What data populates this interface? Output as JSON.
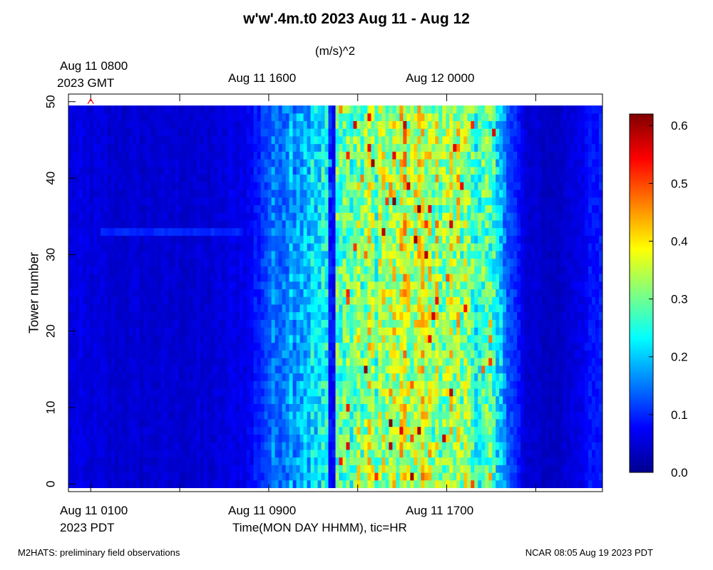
{
  "title": "w'w'.4m.t0 2023 Aug 11 - Aug 12",
  "units": "(m/s)^2",
  "top_axis": {
    "first_label_line1": "Aug 11 0800",
    "first_label_line2": "2023 GMT",
    "labels": [
      "Aug 11 1600",
      "Aug 12 0000"
    ]
  },
  "bottom_axis": {
    "first_label_line1": "Aug 11 0100",
    "first_label_line2": "2023 PDT",
    "labels": [
      "Aug 11 0900",
      "Aug 11 1700"
    ],
    "xlabel": "Time(MON DAY HHMM), tic=HR"
  },
  "footer": {
    "left": "M2HATS: preliminary field observations",
    "right": "NCAR 08:05 Aug 19 2023 PDT"
  },
  "chart_data": {
    "type": "heatmap",
    "title": "w'w'.4m.t0 2023 Aug 11 - Aug 12",
    "xlabel": "Time(MON DAY HHMM), tic=HR",
    "ylabel": "Tower number",
    "x_range_hours_since_aug11_0000_PDT": [
      0,
      24
    ],
    "x_ticks_hours": [
      1,
      5,
      9,
      13,
      17,
      21
    ],
    "x_tick_labels": [
      "Aug 11 0100",
      "Aug 11 0900",
      "Aug 11 1700"
    ],
    "ylim": [
      -1,
      51
    ],
    "y_ticks": [
      0,
      10,
      20,
      30,
      40,
      50
    ],
    "y_tick_labels": [
      "0",
      "10",
      "20",
      "30",
      "40",
      "50"
    ],
    "tower_range": [
      0,
      49
    ],
    "colorbar": {
      "label": "(m/s)^2",
      "min": 0.0,
      "max": 0.62,
      "ticks": [
        0.0,
        0.1,
        0.2,
        0.3,
        0.4,
        0.5,
        0.6
      ],
      "tick_labels": [
        "0.0",
        "0.1",
        "0.2",
        "0.3",
        "0.4",
        "0.5",
        "0.6"
      ],
      "colormap": "jet"
    },
    "time_profile": [
      {
        "hour": 0.0,
        "value": 0.06
      },
      {
        "hour": 2.0,
        "value": 0.05
      },
      {
        "hour": 6.5,
        "value": 0.05
      },
      {
        "hour": 8.2,
        "value": 0.07
      },
      {
        "hour": 8.8,
        "value": 0.12
      },
      {
        "hour": 10.0,
        "value": 0.18
      },
      {
        "hour": 11.5,
        "value": 0.22
      },
      {
        "hour": 12.0,
        "value": 0.28
      },
      {
        "hour": 12.8,
        "value": 0.29
      },
      {
        "hour": 13.5,
        "value": 0.32
      },
      {
        "hour": 15.5,
        "value": 0.35
      },
      {
        "hour": 17.5,
        "value": 0.33
      },
      {
        "hour": 19.0,
        "value": 0.25
      },
      {
        "hour": 19.8,
        "value": 0.14
      },
      {
        "hour": 20.5,
        "value": 0.05
      },
      {
        "hour": 22.0,
        "value": 0.04
      },
      {
        "hour": 23.0,
        "value": 0.07
      },
      {
        "hour": 24.0,
        "value": 0.09
      }
    ],
    "dark_gap_hour": 11.9,
    "annotations": [
      {
        "type": "elevated_band",
        "tower": 33,
        "hour_start": 1.5,
        "hour_end": 7.9,
        "value": 0.1
      },
      {
        "type": "marker",
        "symbol": "^",
        "color": "#ff0000",
        "hour": 1.0,
        "tower": 50
      }
    ]
  }
}
